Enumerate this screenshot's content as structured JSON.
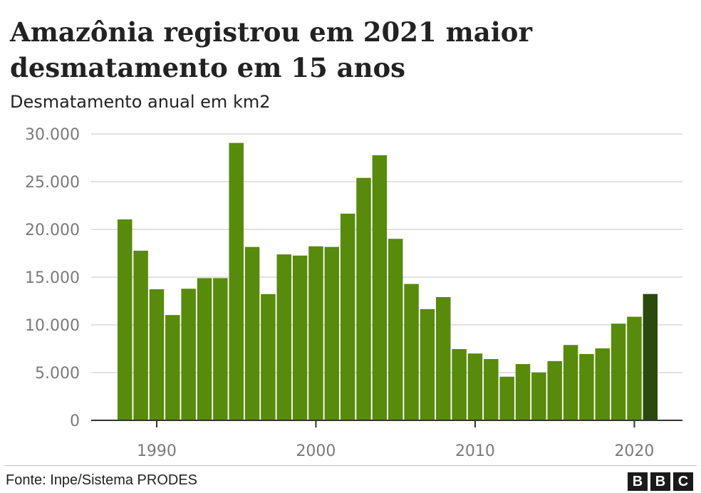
{
  "title": "Amazônia registrou em 2021 maior desmatamento em 15 anos",
  "subtitle": "Desmatamento anual em km2",
  "source": "Fonte: Inpe/Sistema PRODES",
  "logo": [
    "B",
    "B",
    "C"
  ],
  "colors": {
    "bar": "#588a0c",
    "bar_highlight": "#2c4a0d",
    "grid": "#d9d9d9",
    "axis": "#333333"
  },
  "chart_data": {
    "type": "bar",
    "title": "Amazônia registrou em 2021 maior desmatamento em 15 anos",
    "subtitle": "Desmatamento anual em km2",
    "xlabel": "",
    "ylabel": "",
    "x": [
      1988,
      1989,
      1990,
      1991,
      1992,
      1993,
      1994,
      1995,
      1996,
      1997,
      1998,
      1999,
      2000,
      2001,
      2002,
      2003,
      2004,
      2005,
      2006,
      2007,
      2008,
      2009,
      2010,
      2011,
      2012,
      2013,
      2014,
      2015,
      2016,
      2017,
      2018,
      2019,
      2020,
      2021
    ],
    "values": [
      21050,
      17770,
      13730,
      11030,
      13786,
      14896,
      14896,
      29059,
      18161,
      13227,
      17383,
      17259,
      18226,
      18165,
      21651,
      25396,
      27772,
      19014,
      14286,
      11651,
      12911,
      7464,
      7000,
      6418,
      4571,
      5891,
      5012,
      6207,
      7893,
      6947,
      7536,
      10129,
      10851,
      13235
    ],
    "highlight": 2021,
    "ylim": [
      0,
      30000
    ],
    "yticks": [
      0,
      5000,
      10000,
      15000,
      20000,
      25000,
      30000
    ],
    "ytick_labels": [
      "0",
      "5.000",
      "10.000",
      "15.000",
      "20.000",
      "25.000",
      "30.000"
    ],
    "xticks": [
      1990,
      2000,
      2010,
      2020
    ],
    "xtick_labels": [
      "1990",
      "2000",
      "2010",
      "2020"
    ],
    "grid": true,
    "legend": "none"
  }
}
